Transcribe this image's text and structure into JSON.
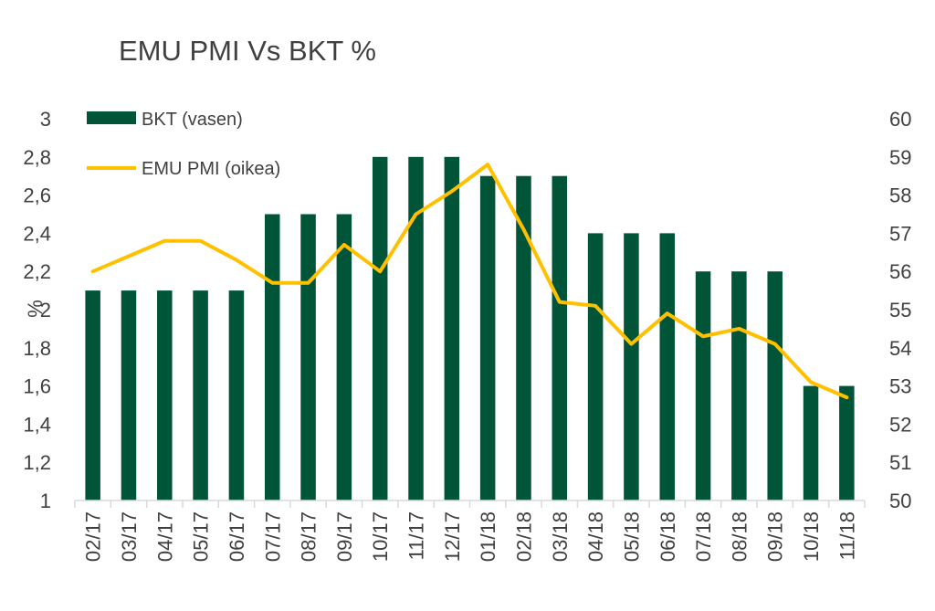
{
  "chart_data": {
    "type": "bar",
    "title": "EMU PMI Vs BKT %",
    "ylabel": "%",
    "categories": [
      "02/17",
      "03/17",
      "04/17",
      "05/17",
      "06/17",
      "07/17",
      "08/17",
      "09/17",
      "10/17",
      "11/17",
      "12/17",
      "01/18",
      "02/18",
      "03/18",
      "04/18",
      "05/18",
      "06/18",
      "07/18",
      "08/18",
      "09/18",
      "10/18",
      "11/18"
    ],
    "left_axis": {
      "min": 1,
      "max": 3,
      "ticks": [
        "1",
        "1,2",
        "1,4",
        "1,6",
        "1,8",
        "2",
        "2,2",
        "2,4",
        "2,6",
        "2,8",
        "3"
      ]
    },
    "right_axis": {
      "min": 50,
      "max": 60,
      "ticks": [
        "50",
        "51",
        "52",
        "53",
        "54",
        "55",
        "56",
        "57",
        "58",
        "59",
        "60"
      ]
    },
    "series": [
      {
        "name": "BKT (vasen)",
        "type": "bar",
        "axis": "left",
        "color": "#005438",
        "values": [
          2.1,
          2.1,
          2.1,
          2.1,
          2.1,
          2.5,
          2.5,
          2.5,
          2.8,
          2.8,
          2.8,
          2.7,
          2.7,
          2.7,
          2.4,
          2.4,
          2.4,
          2.2,
          2.2,
          2.2,
          1.6,
          1.6
        ]
      },
      {
        "name": "EMU PMI (oikea)",
        "type": "line",
        "axis": "right",
        "color": "#FFC000",
        "values": [
          56.0,
          56.4,
          56.8,
          56.8,
          56.3,
          55.7,
          55.7,
          56.7,
          56.0,
          57.5,
          58.1,
          58.8,
          57.1,
          55.2,
          55.1,
          54.1,
          54.9,
          54.3,
          54.5,
          54.1,
          53.1,
          52.7
        ]
      }
    ],
    "grid": false,
    "legend_position": "top-left"
  }
}
